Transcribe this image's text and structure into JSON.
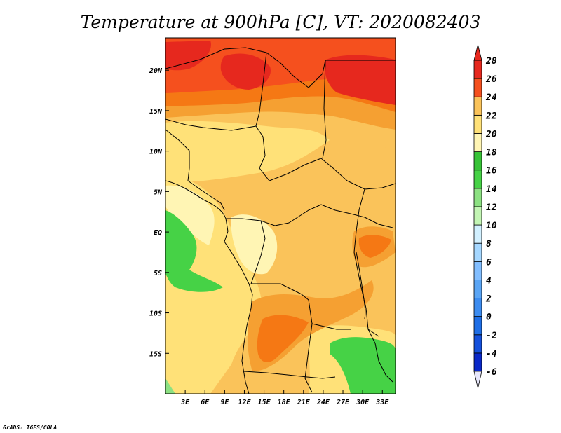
{
  "title": "Temperature at 900hPa [C], VT: 2020082403",
  "credit": "GrADS: IGES/COLA",
  "map": {
    "lon_range": [
      0,
      35
    ],
    "lat_range": [
      -20,
      24
    ],
    "lon_ticks": [
      {
        "value": 3,
        "label": "3E"
      },
      {
        "value": 6,
        "label": "6E"
      },
      {
        "value": 9,
        "label": "9E"
      },
      {
        "value": 12,
        "label": "12E"
      },
      {
        "value": 15,
        "label": "15E"
      },
      {
        "value": 18,
        "label": "18E"
      },
      {
        "value": 21,
        "label": "21E"
      },
      {
        "value": 24,
        "label": "24E"
      },
      {
        "value": 27,
        "label": "27E"
      },
      {
        "value": 30,
        "label": "30E"
      },
      {
        "value": 33,
        "label": "33E"
      }
    ],
    "lat_ticks": [
      {
        "value": 20,
        "label": "20N"
      },
      {
        "value": 15,
        "label": "15N"
      },
      {
        "value": 10,
        "label": "10N"
      },
      {
        "value": 5,
        "label": "5N"
      },
      {
        "value": 0,
        "label": "EQ"
      },
      {
        "value": -5,
        "label": "5S"
      },
      {
        "value": -10,
        "label": "10S"
      },
      {
        "value": -15,
        "label": "15S"
      }
    ]
  },
  "colorbar": {
    "levels": [
      {
        "label": "-6",
        "color": "#1a0f8c"
      },
      {
        "label": "-4",
        "color": "#0a28c8"
      },
      {
        "label": "-2",
        "color": "#1450dc"
      },
      {
        "label": "0",
        "color": "#1e6ee6"
      },
      {
        "label": "2",
        "color": "#3c8cf0"
      },
      {
        "label": "4",
        "color": "#5aa5f5"
      },
      {
        "label": "6",
        "color": "#82beff"
      },
      {
        "label": "8",
        "color": "#a5d7ff"
      },
      {
        "label": "10",
        "color": "#d2f0ff"
      },
      {
        "label": "12",
        "color": "#c3f5b4"
      },
      {
        "label": "14",
        "color": "#8ce182"
      },
      {
        "label": "16",
        "color": "#46d246"
      },
      {
        "label": "18",
        "color": "#37c337"
      },
      {
        "label": "20",
        "color": "#fff5b4"
      },
      {
        "label": "22",
        "color": "#ffe178"
      },
      {
        "label": "24",
        "color": "#fac35a"
      },
      {
        "label": "26",
        "color": "#f5a032"
      },
      {
        "label": "28",
        "color": "#f57814"
      }
    ],
    "below_color": "#e6e6fa",
    "top_bands": [
      "#f5501e",
      "#e6281e"
    ]
  },
  "field": {
    "colors": {
      "t18": "#fff5b4",
      "t20": "#ffe178",
      "t22": "#fac35a",
      "t24": "#f5a032",
      "t26": "#f57814",
      "t28": "#f5501e",
      "t30": "#e6281e",
      "g16": "#46d246",
      "g14": "#8ce182"
    }
  }
}
